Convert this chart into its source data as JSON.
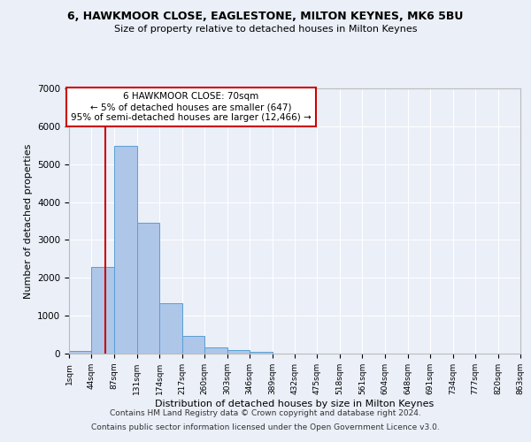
{
  "title1": "6, HAWKMOOR CLOSE, EAGLESTONE, MILTON KEYNES, MK6 5BU",
  "title2": "Size of property relative to detached houses in Milton Keynes",
  "xlabel": "Distribution of detached houses by size in Milton Keynes",
  "ylabel": "Number of detached properties",
  "footer1": "Contains HM Land Registry data © Crown copyright and database right 2024.",
  "footer2": "Contains public sector information licensed under the Open Government Licence v3.0.",
  "bin_edges": [
    1,
    44,
    87,
    131,
    174,
    217,
    260,
    303,
    346,
    389,
    432,
    475,
    518,
    561,
    604,
    648,
    691,
    734,
    777,
    820,
    863
  ],
  "bin_labels": [
    "1sqm",
    "44sqm",
    "87sqm",
    "131sqm",
    "174sqm",
    "217sqm",
    "260sqm",
    "303sqm",
    "346sqm",
    "389sqm",
    "432sqm",
    "475sqm",
    "518sqm",
    "561sqm",
    "604sqm",
    "648sqm",
    "691sqm",
    "734sqm",
    "777sqm",
    "820sqm",
    "863sqm"
  ],
  "bar_heights": [
    75,
    2280,
    5480,
    3450,
    1320,
    470,
    155,
    90,
    55,
    0,
    0,
    0,
    0,
    0,
    0,
    0,
    0,
    0,
    0,
    0
  ],
  "bar_color": "#aec6e8",
  "bar_edge_color": "#5a9fd4",
  "red_line_x": 70,
  "annotation_title": "6 HAWKMOOR CLOSE: 70sqm",
  "annotation_line1": "← 5% of detached houses are smaller (647)",
  "annotation_line2": "95% of semi-detached houses are larger (12,466) →",
  "ylim": [
    0,
    7000
  ],
  "yticks": [
    0,
    1000,
    2000,
    3000,
    4000,
    5000,
    6000,
    7000
  ],
  "bg_color": "#eaeff8",
  "grid_color": "#ffffff",
  "annotation_box_color": "#ffffff",
  "annotation_box_edge": "#cc0000",
  "red_line_color": "#cc0000"
}
